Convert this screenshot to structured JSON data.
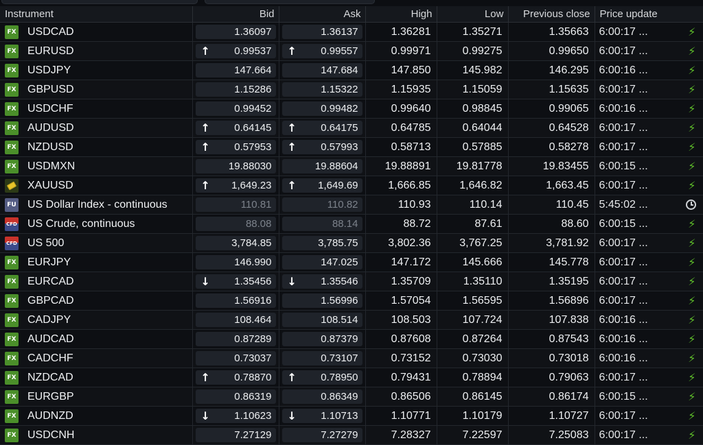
{
  "columns": {
    "instrument": "Instrument",
    "bid": "Bid",
    "ask": "Ask",
    "high": "High",
    "low": "Low",
    "prev_close": "Previous close",
    "price_update": "Price update"
  },
  "colors": {
    "bolt": "#5fbf2a",
    "fx_badge": "#4b8f2a",
    "quote_box": "#1f232a"
  },
  "rows": [
    {
      "type": "fx",
      "badge": "FX",
      "name": "USDCAD",
      "dir": "",
      "bid": "1.36097",
      "ask": "1.36137",
      "high": "1.36281",
      "low": "1.35271",
      "prev": "1.35663",
      "time": "6:00:17 ...",
      "status": "bolt-icon"
    },
    {
      "type": "fx",
      "badge": "FX",
      "name": "EURUSD",
      "dir": "up",
      "bid": "0.99537",
      "ask": "0.99557",
      "high": "0.99971",
      "low": "0.99275",
      "prev": "0.99650",
      "time": "6:00:17 ...",
      "status": "bolt-icon"
    },
    {
      "type": "fx",
      "badge": "FX",
      "name": "USDJPY",
      "dir": "",
      "bid": "147.664",
      "ask": "147.684",
      "high": "147.850",
      "low": "145.982",
      "prev": "146.295",
      "time": "6:00:16 ...",
      "status": "bolt-icon"
    },
    {
      "type": "fx",
      "badge": "FX",
      "name": "GBPUSD",
      "dir": "",
      "bid": "1.15286",
      "ask": "1.15322",
      "high": "1.15935",
      "low": "1.15059",
      "prev": "1.15635",
      "time": "6:00:17 ...",
      "status": "bolt-icon"
    },
    {
      "type": "fx",
      "badge": "FX",
      "name": "USDCHF",
      "dir": "",
      "bid": "0.99452",
      "ask": "0.99482",
      "high": "0.99640",
      "low": "0.98845",
      "prev": "0.99065",
      "time": "6:00:16 ...",
      "status": "bolt-icon"
    },
    {
      "type": "fx",
      "badge": "FX",
      "name": "AUDUSD",
      "dir": "up",
      "bid": "0.64145",
      "ask": "0.64175",
      "high": "0.64785",
      "low": "0.64044",
      "prev": "0.64528",
      "time": "6:00:17 ...",
      "status": "bolt-icon"
    },
    {
      "type": "fx",
      "badge": "FX",
      "name": "NZDUSD",
      "dir": "up",
      "bid": "0.57953",
      "ask": "0.57993",
      "high": "0.58713",
      "low": "0.57885",
      "prev": "0.58278",
      "time": "6:00:17 ...",
      "status": "bolt-icon"
    },
    {
      "type": "fx",
      "badge": "FX",
      "name": "USDMXN",
      "dir": "",
      "bid": "19.88030",
      "ask": "19.88604",
      "high": "19.88891",
      "low": "19.81778",
      "prev": "19.83455",
      "time": "6:00:15 ...",
      "status": "bolt-icon"
    },
    {
      "type": "gold",
      "badge": "",
      "name": "XAUUSD",
      "dir": "up",
      "bid": "1,649.23",
      "ask": "1,649.69",
      "high": "1,666.85",
      "low": "1,646.82",
      "prev": "1,663.45",
      "time": "6:00:17 ...",
      "status": "bolt-icon"
    },
    {
      "type": "fu",
      "badge": "FU",
      "name": "US Dollar Index - continuous",
      "dir": "",
      "stale": true,
      "bid": "110.81",
      "ask": "110.82",
      "high": "110.93",
      "low": "110.14",
      "prev": "110.45",
      "time": "5:45:02 ...",
      "status": "clock-icon"
    },
    {
      "type": "cfd",
      "badge": "CFD",
      "name": "US Crude, continuous",
      "dir": "",
      "stale": true,
      "bid": "88.08",
      "ask": "88.14",
      "high": "88.72",
      "low": "87.61",
      "prev": "88.60",
      "time": "6:00:15 ...",
      "status": "bolt-icon"
    },
    {
      "type": "cfd",
      "badge": "CFD",
      "name": "US 500",
      "dir": "",
      "bid": "3,784.85",
      "ask": "3,785.75",
      "high": "3,802.36",
      "low": "3,767.25",
      "prev": "3,781.92",
      "time": "6:00:17 ...",
      "status": "bolt-icon"
    },
    {
      "type": "fx",
      "badge": "FX",
      "name": "EURJPY",
      "dir": "",
      "bid": "146.990",
      "ask": "147.025",
      "high": "147.172",
      "low": "145.666",
      "prev": "145.778",
      "time": "6:00:17 ...",
      "status": "bolt-icon"
    },
    {
      "type": "fx",
      "badge": "FX",
      "name": "EURCAD",
      "dir": "down",
      "bid": "1.35456",
      "ask": "1.35546",
      "high": "1.35709",
      "low": "1.35110",
      "prev": "1.35195",
      "time": "6:00:17 ...",
      "status": "bolt-icon"
    },
    {
      "type": "fx",
      "badge": "FX",
      "name": "GBPCAD",
      "dir": "",
      "bid": "1.56916",
      "ask": "1.56996",
      "high": "1.57054",
      "low": "1.56595",
      "prev": "1.56896",
      "time": "6:00:17 ...",
      "status": "bolt-icon"
    },
    {
      "type": "fx",
      "badge": "FX",
      "name": "CADJPY",
      "dir": "",
      "bid": "108.464",
      "ask": "108.514",
      "high": "108.503",
      "low": "107.724",
      "prev": "107.838",
      "time": "6:00:16 ...",
      "status": "bolt-icon"
    },
    {
      "type": "fx",
      "badge": "FX",
      "name": "AUDCAD",
      "dir": "",
      "bid": "0.87289",
      "ask": "0.87379",
      "high": "0.87608",
      "low": "0.87264",
      "prev": "0.87543",
      "time": "6:00:16 ...",
      "status": "bolt-icon"
    },
    {
      "type": "fx",
      "badge": "FX",
      "name": "CADCHF",
      "dir": "",
      "bid": "0.73037",
      "ask": "0.73107",
      "high": "0.73152",
      "low": "0.73030",
      "prev": "0.73018",
      "time": "6:00:16 ...",
      "status": "bolt-icon"
    },
    {
      "type": "fx",
      "badge": "FX",
      "name": "NZDCAD",
      "dir": "up",
      "bid": "0.78870",
      "ask": "0.78950",
      "high": "0.79431",
      "low": "0.78894",
      "prev": "0.79063",
      "time": "6:00:17 ...",
      "status": "bolt-icon"
    },
    {
      "type": "fx",
      "badge": "FX",
      "name": "EURGBP",
      "dir": "",
      "bid": "0.86319",
      "ask": "0.86349",
      "high": "0.86506",
      "low": "0.86145",
      "prev": "0.86174",
      "time": "6:00:15 ...",
      "status": "bolt-icon"
    },
    {
      "type": "fx",
      "badge": "FX",
      "name": "AUDNZD",
      "dir": "down",
      "bid": "1.10623",
      "ask": "1.10713",
      "high": "1.10771",
      "low": "1.10179",
      "prev": "1.10727",
      "time": "6:00:17 ...",
      "status": "bolt-icon"
    },
    {
      "type": "fx",
      "badge": "FX",
      "name": "USDCNH",
      "dir": "",
      "bid": "7.27129",
      "ask": "7.27279",
      "high": "7.28327",
      "low": "7.22597",
      "prev": "7.25083",
      "time": "6:00:17 ...",
      "status": "bolt-icon"
    }
  ]
}
